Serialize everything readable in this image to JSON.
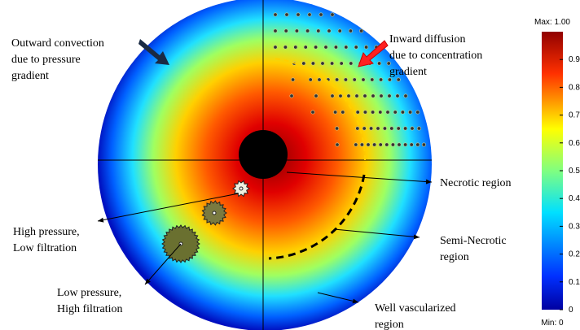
{
  "labels": {
    "outward": [
      "Outward convection",
      "due to pressure",
      "gradient"
    ],
    "inward": [
      "Inward diffusion",
      "due to concentration",
      "gradient"
    ],
    "necrotic": [
      "Necrotic region"
    ],
    "high_pressure": [
      "High pressure,",
      "Low filtration"
    ],
    "semi_necrotic": [
      "Semi-Necrotic",
      "region"
    ],
    "low_pressure": [
      "Low pressure,",
      "High filtration"
    ],
    "well_vascularized": [
      "Well vascularized",
      "region"
    ]
  },
  "colorbar": {
    "max_label": "Max: 1.00",
    "min_label": "Min: 0",
    "lim": [
      0,
      1
    ],
    "ticks": [
      0,
      0.1,
      0.2,
      0.3,
      0.4,
      0.5,
      0.6,
      0.7,
      0.8,
      0.9
    ]
  }
}
